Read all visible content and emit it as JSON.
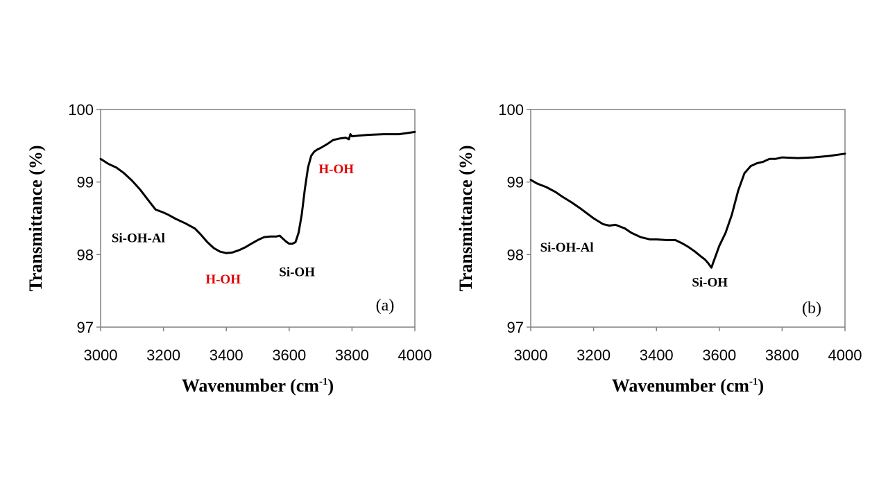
{
  "chart_data": [
    {
      "type": "line",
      "panel_label": "(a)",
      "xlabel": "Wavenumber (cm",
      "xlabel_sup": "-1",
      "xlabel_close": ")",
      "ylabel": "Transmittance (%)",
      "xlim": [
        3000,
        4000
      ],
      "ylim": [
        97,
        100
      ],
      "xticks": [
        "3000",
        "3200",
        "3400",
        "3600",
        "3800",
        "4000"
      ],
      "yticks": [
        "97",
        "98",
        "99",
        "100"
      ],
      "grid": false,
      "series": [
        {
          "color": "#000000",
          "x": [
            3000,
            3025,
            3050,
            3075,
            3100,
            3125,
            3150,
            3175,
            3200,
            3215,
            3240,
            3270,
            3300,
            3320,
            3340,
            3360,
            3380,
            3400,
            3420,
            3440,
            3460,
            3480,
            3500,
            3520,
            3540,
            3560,
            3570,
            3580,
            3590,
            3600,
            3610,
            3620,
            3630,
            3640,
            3650,
            3660,
            3670,
            3680,
            3690,
            3700,
            3720,
            3740,
            3760,
            3780,
            3790,
            3795,
            3800,
            3820,
            3850,
            3900,
            3950,
            4000
          ],
          "y": [
            99.32,
            99.25,
            99.2,
            99.12,
            99.02,
            98.9,
            98.76,
            98.62,
            98.58,
            98.55,
            98.49,
            98.43,
            98.36,
            98.27,
            98.17,
            98.09,
            98.04,
            98.02,
            98.03,
            98.06,
            98.1,
            98.15,
            98.2,
            98.24,
            98.25,
            98.25,
            98.26,
            98.22,
            98.18,
            98.15,
            98.15,
            98.17,
            98.3,
            98.55,
            98.9,
            99.2,
            99.36,
            99.42,
            99.45,
            99.47,
            99.52,
            99.58,
            99.6,
            99.61,
            99.59,
            99.66,
            99.63,
            99.64,
            99.65,
            99.66,
            99.66,
            99.69
          ]
        }
      ],
      "annotations": [
        {
          "text": "Si-OH-Al",
          "x": 3120,
          "y": 98.17,
          "color": "#000000"
        },
        {
          "text": "H-OH",
          "x": 3390,
          "y": 97.6,
          "color": "#e00000"
        },
        {
          "text": "Si-OH",
          "x": 3625,
          "y": 97.7,
          "color": "#000000"
        },
        {
          "text": "H-OH",
          "x": 3750,
          "y": 99.12,
          "color": "#e00000"
        }
      ]
    },
    {
      "type": "line",
      "panel_label": "(b)",
      "xlabel": "Wavenumber (cm",
      "xlabel_sup": "-1",
      "xlabel_close": ")",
      "ylabel": "Transmittance (%)",
      "xlim": [
        3000,
        4000
      ],
      "ylim": [
        97,
        100
      ],
      "xticks": [
        "3000",
        "3200",
        "3400",
        "3600",
        "3800",
        "4000"
      ],
      "yticks": [
        "97",
        "98",
        "99",
        "100"
      ],
      "grid": false,
      "series": [
        {
          "color": "#000000",
          "x": [
            3000,
            3020,
            3050,
            3080,
            3100,
            3130,
            3160,
            3200,
            3230,
            3250,
            3270,
            3300,
            3320,
            3350,
            3380,
            3400,
            3430,
            3460,
            3480,
            3500,
            3520,
            3540,
            3555,
            3565,
            3575,
            3580,
            3590,
            3600,
            3620,
            3640,
            3660,
            3680,
            3700,
            3720,
            3740,
            3760,
            3780,
            3800,
            3850,
            3900,
            3950,
            4000
          ],
          "y": [
            99.03,
            98.98,
            98.93,
            98.86,
            98.8,
            98.72,
            98.63,
            98.5,
            98.42,
            98.4,
            98.41,
            98.36,
            98.3,
            98.24,
            98.21,
            98.21,
            98.2,
            98.2,
            98.16,
            98.11,
            98.05,
            97.98,
            97.93,
            97.88,
            97.82,
            97.88,
            98.0,
            98.12,
            98.3,
            98.55,
            98.88,
            99.12,
            99.22,
            99.26,
            99.28,
            99.32,
            99.32,
            99.34,
            99.33,
            99.34,
            99.36,
            99.39
          ]
        }
      ],
      "annotations": [
        {
          "text": "Si-OH-Al",
          "x": 3115,
          "y": 98.04,
          "color": "#000000"
        },
        {
          "text": "Si-OH",
          "x": 3570,
          "y": 97.56,
          "color": "#000000"
        }
      ]
    }
  ]
}
